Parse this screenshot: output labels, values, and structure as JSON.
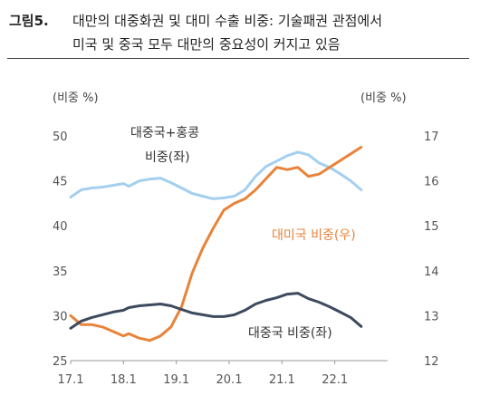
{
  "figure": {
    "number": "그림5.",
    "title_line1": "대만의 대중화권 및 대미 수출 비중: 기술패권 관점에서",
    "title_line2": "미국 및 중국 모두 대만의 중요성이 커지고 있음"
  },
  "chart_data": {
    "type": "line",
    "x_ticks": [
      "17.1",
      "18.1",
      "19.1",
      "20.1",
      "21.1",
      "22.1"
    ],
    "x_range": [
      "2017.01",
      "2022.07"
    ],
    "left_axis": {
      "label": "(비중 %)",
      "ticks": [
        "50",
        "45",
        "40",
        "35",
        "30",
        "25"
      ],
      "range": [
        25,
        50
      ]
    },
    "right_axis": {
      "label": "(비중 %)",
      "ticks": [
        "17",
        "16",
        "15",
        "14",
        "13",
        "12"
      ],
      "range": [
        12,
        17
      ]
    },
    "grid": false,
    "series": [
      {
        "name": "대중국+홍콩 비중(좌)",
        "label_line1": "대중국+홍콩",
        "label_line2": "비중(좌)",
        "axis": "left",
        "color": "#a4cfee",
        "x": [
          2017.0,
          2017.2,
          2017.4,
          2017.6,
          2017.8,
          2018.0,
          2018.1,
          2018.3,
          2018.5,
          2018.7,
          2018.9,
          2019.1,
          2019.3,
          2019.5,
          2019.7,
          2019.9,
          2020.1,
          2020.3,
          2020.5,
          2020.7,
          2020.9,
          2021.1,
          2021.3,
          2021.5,
          2021.7,
          2021.9,
          2022.1,
          2022.3,
          2022.5
        ],
        "values": [
          43.2,
          44.0,
          44.2,
          44.3,
          44.5,
          44.7,
          44.4,
          45.0,
          45.2,
          45.3,
          44.8,
          44.2,
          43.6,
          43.3,
          43.0,
          43.1,
          43.3,
          44.0,
          45.5,
          46.6,
          47.2,
          47.8,
          48.2,
          47.9,
          47.0,
          46.5,
          45.8,
          45.0,
          44.0
        ]
      },
      {
        "name": "대미국 비중(우)",
        "label": "대미국 비중(우)",
        "axis": "right",
        "color": "#e8833a",
        "x": [
          2017.0,
          2017.2,
          2017.4,
          2017.6,
          2017.8,
          2018.0,
          2018.1,
          2018.3,
          2018.5,
          2018.7,
          2018.9,
          2019.1,
          2019.3,
          2019.5,
          2019.7,
          2019.9,
          2020.1,
          2020.3,
          2020.5,
          2020.7,
          2020.9,
          2021.1,
          2021.3,
          2021.5,
          2021.7,
          2021.9,
          2022.1,
          2022.3,
          2022.5
        ],
        "values": [
          13.0,
          12.8,
          12.8,
          12.75,
          12.65,
          12.55,
          12.6,
          12.5,
          12.45,
          12.55,
          12.75,
          13.2,
          13.95,
          14.5,
          14.95,
          15.35,
          15.5,
          15.6,
          15.8,
          16.05,
          16.3,
          16.25,
          16.3,
          16.1,
          16.15,
          16.3,
          16.45,
          16.6,
          16.75
        ]
      },
      {
        "name": "대중국 비중(좌)",
        "label": "대중국 비중(좌)",
        "axis": "left",
        "color": "#3d4a5e",
        "x": [
          2017.0,
          2017.2,
          2017.4,
          2017.6,
          2017.8,
          2018.0,
          2018.1,
          2018.3,
          2018.5,
          2018.7,
          2018.9,
          2019.1,
          2019.3,
          2019.5,
          2019.7,
          2019.9,
          2020.1,
          2020.3,
          2020.5,
          2020.7,
          2020.9,
          2021.1,
          2021.3,
          2021.5,
          2021.7,
          2021.9,
          2022.1,
          2022.3,
          2022.5
        ],
        "values": [
          28.6,
          29.4,
          29.8,
          30.1,
          30.4,
          30.6,
          30.9,
          31.1,
          31.2,
          31.3,
          31.1,
          30.7,
          30.3,
          30.1,
          29.9,
          29.9,
          30.1,
          30.6,
          31.3,
          31.7,
          32.0,
          32.4,
          32.5,
          31.9,
          31.5,
          31.0,
          30.4,
          29.8,
          28.8
        ]
      }
    ]
  }
}
